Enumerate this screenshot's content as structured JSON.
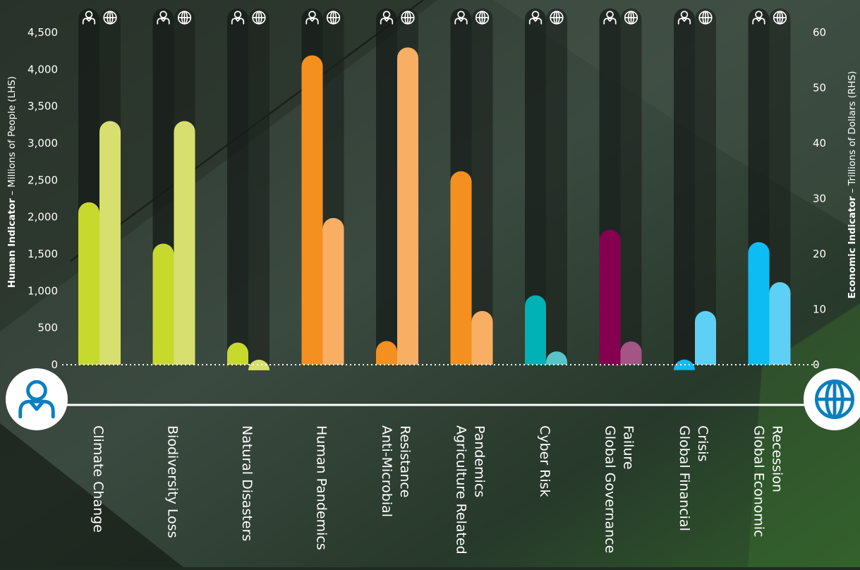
{
  "chart_data": {
    "type": "bar",
    "categories": [
      "Climate Change",
      "Biodiversity Loss",
      "Natural Disasters",
      "Human Pandemics",
      "Anti-Microbial Resistance",
      "Agriculture Related Pandemics",
      "Cyber Risk",
      "Global Governance Failure",
      "Global Financial Crisis",
      "Global Economic Recession"
    ],
    "category_label_lines": [
      [
        "Climate Change"
      ],
      [
        "Biodiversity Loss"
      ],
      [
        "Natural Disasters"
      ],
      [
        "Human Pandemics"
      ],
      [
        "Anti-Microbial",
        "Resistance"
      ],
      [
        "Agriculture Related",
        "Pandemics"
      ],
      [
        "Cyber Risk"
      ],
      [
        "Global Governance",
        "Failure"
      ],
      [
        "Global Financial",
        "Crisis"
      ],
      [
        "Global Economic",
        "Recession"
      ]
    ],
    "series": [
      {
        "axis": "left",
        "values": [
          2200,
          1640,
          300,
          4190,
          320,
          2620,
          940,
          1830,
          70,
          1660
        ],
        "colors": [
          "#c8d92e",
          "#c8d92e",
          "#c8d92e",
          "#f39020",
          "#f39020",
          "#f39020",
          "#00b1b6",
          "#85004f",
          "#0dbcf2",
          "#0dbcf2"
        ]
      },
      {
        "axis": "right",
        "values": [
          44,
          44,
          0.9,
          26.5,
          57.3,
          9.7,
          2.4,
          4.2,
          9.7,
          14.9
        ],
        "colors": [
          "#d7e06e",
          "#d7e06e",
          "#d7e06e",
          "#f8ae63",
          "#f8ae63",
          "#f8ae63",
          "#56c5c8",
          "#a45585",
          "#5ed0f5",
          "#5ed0f5"
        ]
      }
    ],
    "y_left": {
      "label_bold": "Human Indicator",
      "label_rest": " – Millions of People (LHS)",
      "ylim": [
        0,
        4500
      ],
      "ticks": [
        "0",
        "500",
        "1,000",
        "1,500",
        "2,000",
        "2,500",
        "3,000",
        "3,500",
        "4,000",
        "4,500"
      ]
    },
    "y_right": {
      "label_bold": "Economic Indicator",
      "label_rest": " – Trillions of Dollars (RHS)",
      "ylim": [
        0,
        60
      ],
      "ticks": [
        "0",
        "10",
        "20",
        "30",
        "40",
        "50",
        "60"
      ]
    },
    "icons": {
      "left_series": "person-icon",
      "right_series": "globe-icon"
    },
    "colors": {
      "background": "#1f2a22",
      "text": "#ffffff",
      "track": "#141a16"
    },
    "grid": false
  }
}
